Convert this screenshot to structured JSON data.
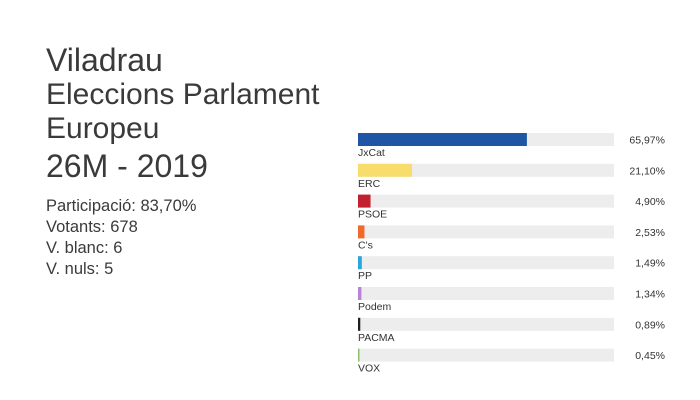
{
  "header": {
    "place": "Viladrau",
    "election_line1": "Eleccions Parlament",
    "election_line2": "Europeu",
    "date": "26M - 2019"
  },
  "stats": {
    "participation": "Participació: 83,70%",
    "voters": "Votants: 678",
    "blank": "V. blanc: 6",
    "null": "V. nuls: 5"
  },
  "chart_data": {
    "type": "bar",
    "orientation": "horizontal",
    "ylim": [
      0,
      100
    ],
    "grid": false,
    "categories": [
      "JxCat",
      "ERC",
      "PSOE",
      "C's",
      "PP",
      "Podem",
      "PACMA",
      "VOX"
    ],
    "values": [
      65.97,
      21.1,
      4.9,
      2.53,
      1.49,
      1.34,
      0.89,
      0.45
    ],
    "value_labels": [
      "65,97%",
      "21,10%",
      "4,90%",
      "2,53%",
      "1,49%",
      "1,34%",
      "0,89%",
      "0,45%"
    ],
    "colors": [
      "#1f55a5",
      "#f9dd6c",
      "#c3202f",
      "#ee6b2d",
      "#2aa5dd",
      "#b884d8",
      "#1f1f1f",
      "#8cc16a"
    ],
    "track_color": "#ededed"
  }
}
